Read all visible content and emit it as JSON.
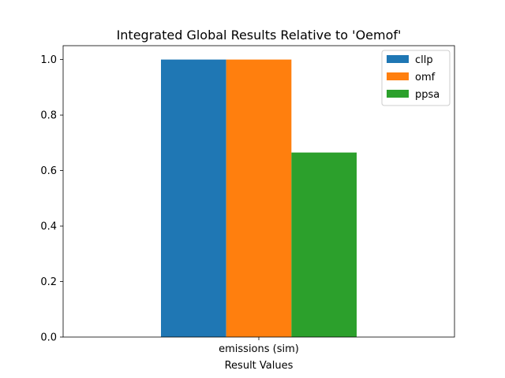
{
  "chart_data": {
    "type": "bar",
    "title": "Integrated Global Results Relative to 'Oemof'",
    "xlabel": "Result Values",
    "ylabel": "",
    "categories": [
      "emissions (sim)"
    ],
    "series": [
      {
        "name": "cllp",
        "values": [
          1.0
        ],
        "color": "#1f77b4"
      },
      {
        "name": "omf",
        "values": [
          1.0
        ],
        "color": "#ff7f0e"
      },
      {
        "name": "ppsa",
        "values": [
          0.665
        ],
        "color": "#2ca02c"
      }
    ],
    "ylim": [
      0,
      1.05
    ],
    "yticks": [
      "0.0",
      "0.2",
      "0.4",
      "0.6",
      "0.8",
      "1.0"
    ],
    "legend_position": "top-right",
    "grid": false
  }
}
